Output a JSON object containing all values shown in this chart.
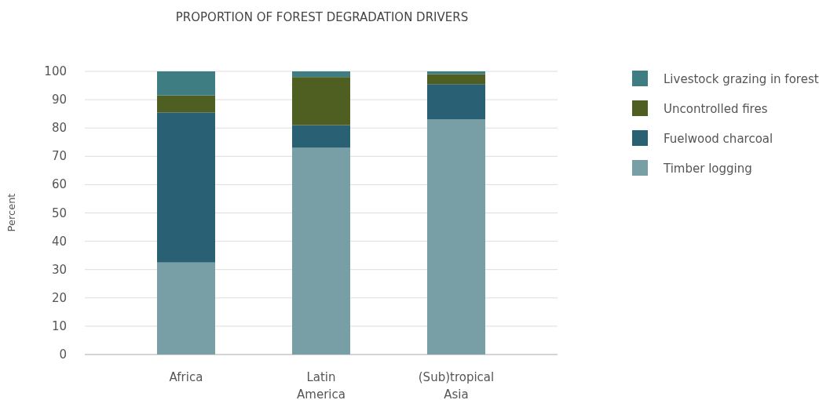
{
  "chart_data": {
    "type": "bar",
    "title": "PROPORTION OF FOREST DEGRADATION DRIVERS",
    "ylabel": "Percent",
    "categories": [
      "Africa",
      "Latin America",
      "(Sub)tropical Asia"
    ],
    "stacked": true,
    "series": [
      {
        "name": "Timber logging",
        "color": "#789ea6",
        "values": [
          32.5,
          73,
          83
        ]
      },
      {
        "name": "Fuelwood charcoal",
        "color": "#2a6073",
        "values": [
          53,
          8,
          12.5
        ]
      },
      {
        "name": "Uncontrolled fires",
        "color": "#4f5f22",
        "values": [
          6,
          17,
          3.5
        ]
      },
      {
        "name": "Livestock grazing in forest",
        "color": "#3e7d82",
        "values": [
          8.5,
          2,
          1
        ]
      }
    ],
    "ylim": [
      0,
      100
    ],
    "yticks": [
      0,
      10,
      20,
      30,
      40,
      50,
      60,
      70,
      80,
      90,
      100
    ],
    "grid": "y",
    "legend": "right"
  }
}
